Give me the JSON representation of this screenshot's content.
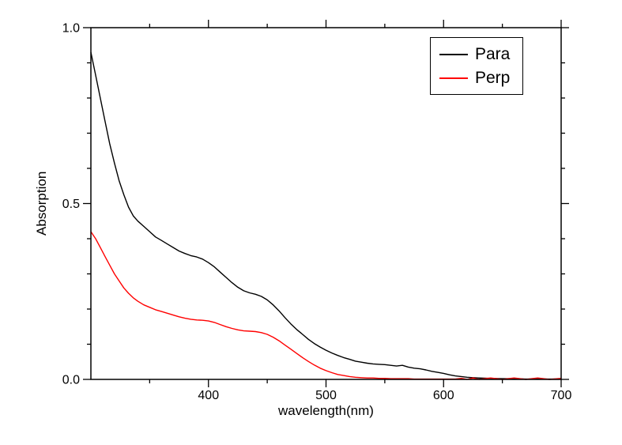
{
  "figure": {
    "background": "#ffffff",
    "frame_color": "#000000"
  },
  "chart_data": {
    "type": "line",
    "title": "",
    "xlabel": "wavelength(nm)",
    "ylabel": "Absorption",
    "xlim": [
      300,
      700
    ],
    "ylim": [
      0.0,
      1.0
    ],
    "grid": false,
    "x_ticks": [
      400,
      500,
      600,
      700
    ],
    "x_tick_labels": [
      "400",
      "500",
      "600",
      "700"
    ],
    "x_minor_ticks": [
      350,
      450,
      550,
      650
    ],
    "y_ticks": [
      0.0,
      0.5,
      1.0
    ],
    "y_tick_labels": [
      "0.0",
      "0.5",
      "1.0"
    ],
    "y_minor_ticks": [
      0.1,
      0.2,
      0.3,
      0.4,
      0.6,
      0.7,
      0.8,
      0.9
    ],
    "legend": {
      "position": "top-right",
      "entries": [
        {
          "label": "Para",
          "color": "#000000"
        },
        {
          "label": "Perp",
          "color": "#ff0000"
        }
      ]
    },
    "series": [
      {
        "name": "Para",
        "color": "#000000",
        "x": [
          300,
          304,
          308,
          312,
          316,
          320,
          324,
          328,
          332,
          336,
          340,
          345,
          350,
          355,
          360,
          365,
          370,
          375,
          380,
          385,
          390,
          395,
          400,
          405,
          410,
          415,
          420,
          425,
          430,
          435,
          440,
          445,
          450,
          455,
          460,
          465,
          470,
          475,
          480,
          485,
          490,
          495,
          500,
          505,
          510,
          515,
          520,
          525,
          530,
          535,
          540,
          545,
          550,
          555,
          560,
          565,
          570,
          575,
          580,
          585,
          590,
          595,
          600,
          605,
          610,
          615,
          620,
          625,
          630,
          640,
          650,
          660,
          670,
          680,
          690,
          700
        ],
        "y": [
          0.93,
          0.865,
          0.8,
          0.735,
          0.67,
          0.615,
          0.565,
          0.525,
          0.49,
          0.465,
          0.45,
          0.435,
          0.42,
          0.405,
          0.395,
          0.385,
          0.375,
          0.365,
          0.358,
          0.352,
          0.348,
          0.342,
          0.332,
          0.32,
          0.305,
          0.29,
          0.275,
          0.262,
          0.252,
          0.246,
          0.242,
          0.236,
          0.226,
          0.212,
          0.195,
          0.176,
          0.158,
          0.142,
          0.128,
          0.114,
          0.102,
          0.092,
          0.083,
          0.075,
          0.068,
          0.062,
          0.057,
          0.052,
          0.049,
          0.046,
          0.044,
          0.043,
          0.042,
          0.04,
          0.038,
          0.04,
          0.035,
          0.032,
          0.03,
          0.027,
          0.023,
          0.02,
          0.017,
          0.013,
          0.01,
          0.008,
          0.006,
          0.005,
          0.004,
          0.003,
          0.002,
          0.002,
          0.001,
          0.001,
          0.001,
          0.001
        ]
      },
      {
        "name": "Perp",
        "color": "#ff0000",
        "x": [
          300,
          304,
          308,
          312,
          316,
          320,
          324,
          328,
          332,
          336,
          340,
          345,
          350,
          355,
          360,
          365,
          370,
          375,
          380,
          385,
          390,
          395,
          400,
          405,
          410,
          415,
          420,
          425,
          430,
          435,
          440,
          445,
          450,
          455,
          460,
          465,
          470,
          475,
          480,
          485,
          490,
          495,
          500,
          505,
          510,
          515,
          520,
          525,
          530,
          535,
          540,
          545,
          550,
          555,
          560,
          565,
          570,
          575,
          580,
          585,
          590,
          595,
          600,
          605,
          610,
          615,
          620,
          625,
          630,
          640,
          650,
          660,
          670,
          680,
          690,
          700
        ],
        "y": [
          0.42,
          0.4,
          0.375,
          0.35,
          0.325,
          0.3,
          0.28,
          0.26,
          0.245,
          0.232,
          0.222,
          0.212,
          0.205,
          0.198,
          0.193,
          0.188,
          0.183,
          0.178,
          0.174,
          0.171,
          0.169,
          0.168,
          0.166,
          0.162,
          0.156,
          0.15,
          0.145,
          0.141,
          0.138,
          0.137,
          0.136,
          0.133,
          0.128,
          0.12,
          0.11,
          0.098,
          0.086,
          0.074,
          0.062,
          0.051,
          0.041,
          0.032,
          0.025,
          0.019,
          0.014,
          0.011,
          0.008,
          0.006,
          0.005,
          0.004,
          0.004,
          0.003,
          0.003,
          0.002,
          0.002,
          0.002,
          0.002,
          0.001,
          0.001,
          0.001,
          0.001,
          0.001,
          0.001,
          0.001,
          0.001,
          0.003,
          0.0,
          0.004,
          0.0,
          0.004,
          0.0,
          0.004,
          0.0,
          0.004,
          0.0,
          0.003
        ]
      }
    ]
  }
}
